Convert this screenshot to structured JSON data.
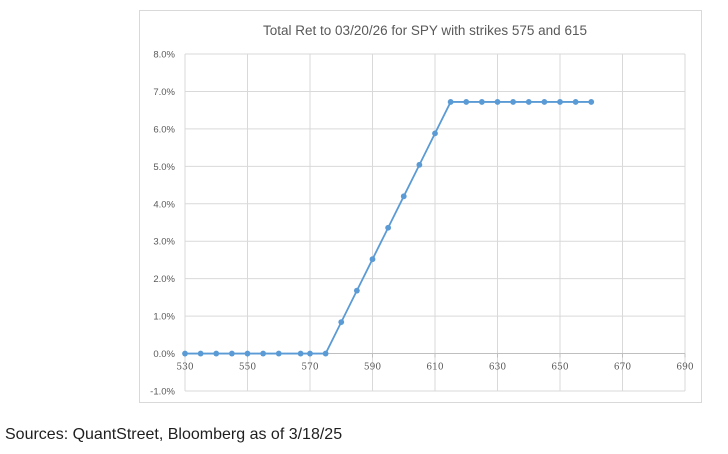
{
  "chart_data": {
    "type": "line",
    "title": "Total Ret to 03/20/26 for SPY with strikes 575 and 615",
    "xlabel": "",
    "ylabel": "",
    "xlim": [
      530,
      690
    ],
    "ylim": [
      -0.01,
      0.08
    ],
    "x_ticks": [
      530,
      550,
      570,
      590,
      610,
      630,
      650,
      670,
      690
    ],
    "x_tick_labels": [
      "530",
      "550",
      "570",
      "590",
      "610",
      "630",
      "650",
      "670",
      "690"
    ],
    "y_ticks": [
      -0.01,
      0,
      0.01,
      0.02,
      0.03,
      0.04,
      0.05,
      0.06,
      0.07,
      0.08
    ],
    "y_tick_labels": [
      "-1.0%",
      "0.0%",
      "1.0%",
      "2.0%",
      "3.0%",
      "4.0%",
      "5.0%",
      "6.0%",
      "7.0%",
      "8.0%"
    ],
    "grid": "vertical and horizontal major gridlines",
    "legend": "none",
    "series": [
      {
        "color": "#5b9bd5",
        "x": [
          530,
          535,
          540,
          545,
          550,
          555,
          560,
          567,
          570,
          575,
          580,
          585,
          590,
          595,
          600,
          605,
          610,
          615,
          620,
          625,
          630,
          635,
          640,
          645,
          650,
          655,
          660
        ],
        "y": [
          0,
          0,
          0,
          0,
          0,
          0,
          0,
          0,
          0,
          0,
          0.0084,
          0.0168,
          0.0252,
          0.0336,
          0.042,
          0.0504,
          0.0588,
          0.0672,
          0.0672,
          0.0672,
          0.0672,
          0.0672,
          0.0672,
          0.0672,
          0.0672,
          0.0672,
          0.0672
        ]
      }
    ]
  },
  "footer": {
    "source": "Sources: QuantStreet, Bloomberg as of 3/18/25"
  }
}
